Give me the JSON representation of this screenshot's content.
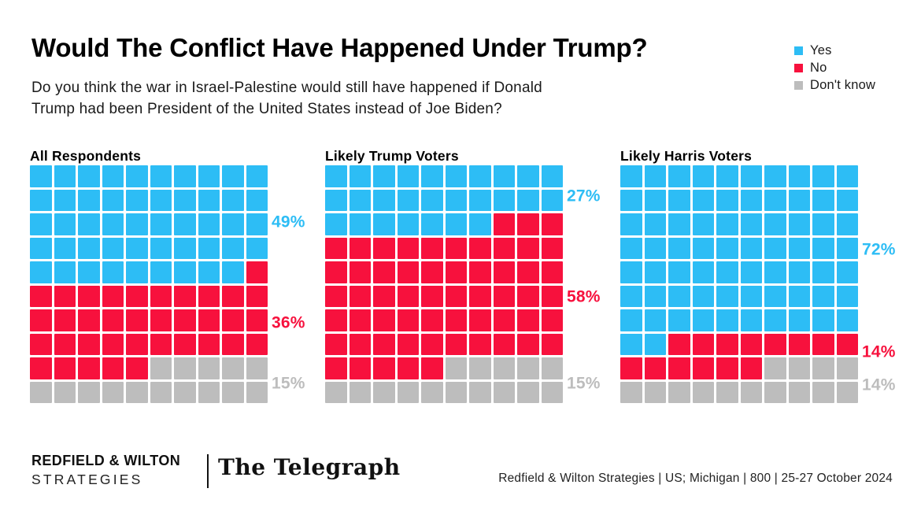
{
  "header": {
    "subtitle_lines": [
      "Do you think the war in Israel-Palestine would still have happened if Donald",
      "Trump had been President of the United States instead of Joe Biden?"
    ]
  },
  "chart_data": {
    "type": "waffle",
    "title": "Would The Conflict Have Happened Under Trump?",
    "subtitle": "Do you think the war in Israel-Palestine would still have happened if Donald Trump had been President of the United States instead of Joe Biden?",
    "grid": {
      "rows": 10,
      "cols": 10,
      "cell_unit_percent": 1
    },
    "legend": [
      "Yes",
      "No",
      "Don't know"
    ],
    "legend_position": "top-right",
    "colors": {
      "Yes": "#2DBDF5",
      "No": "#F7113D",
      "Don't know": "#BDBDBD"
    },
    "groups": [
      {
        "name": "All Respondents",
        "values": {
          "Yes": 49,
          "No": 36,
          "Don't know": 15
        }
      },
      {
        "name": "Likely Trump Voters",
        "values": {
          "Yes": 27,
          "No": 58,
          "Don't know": 15
        }
      },
      {
        "name": "Likely Harris Voters",
        "values": {
          "Yes": 72,
          "No": 14,
          "Don't know": 14
        }
      }
    ],
    "value_label_format": "{value}%"
  },
  "footer": {
    "brand_line1": "REDFIELD & WILTON",
    "brand_line2": "STRATEGIES",
    "partner_logo": "The Telegraph",
    "source": "Redfield & Wilton Strategies | US; Michigan | 800 | 25-27 October 2024"
  }
}
